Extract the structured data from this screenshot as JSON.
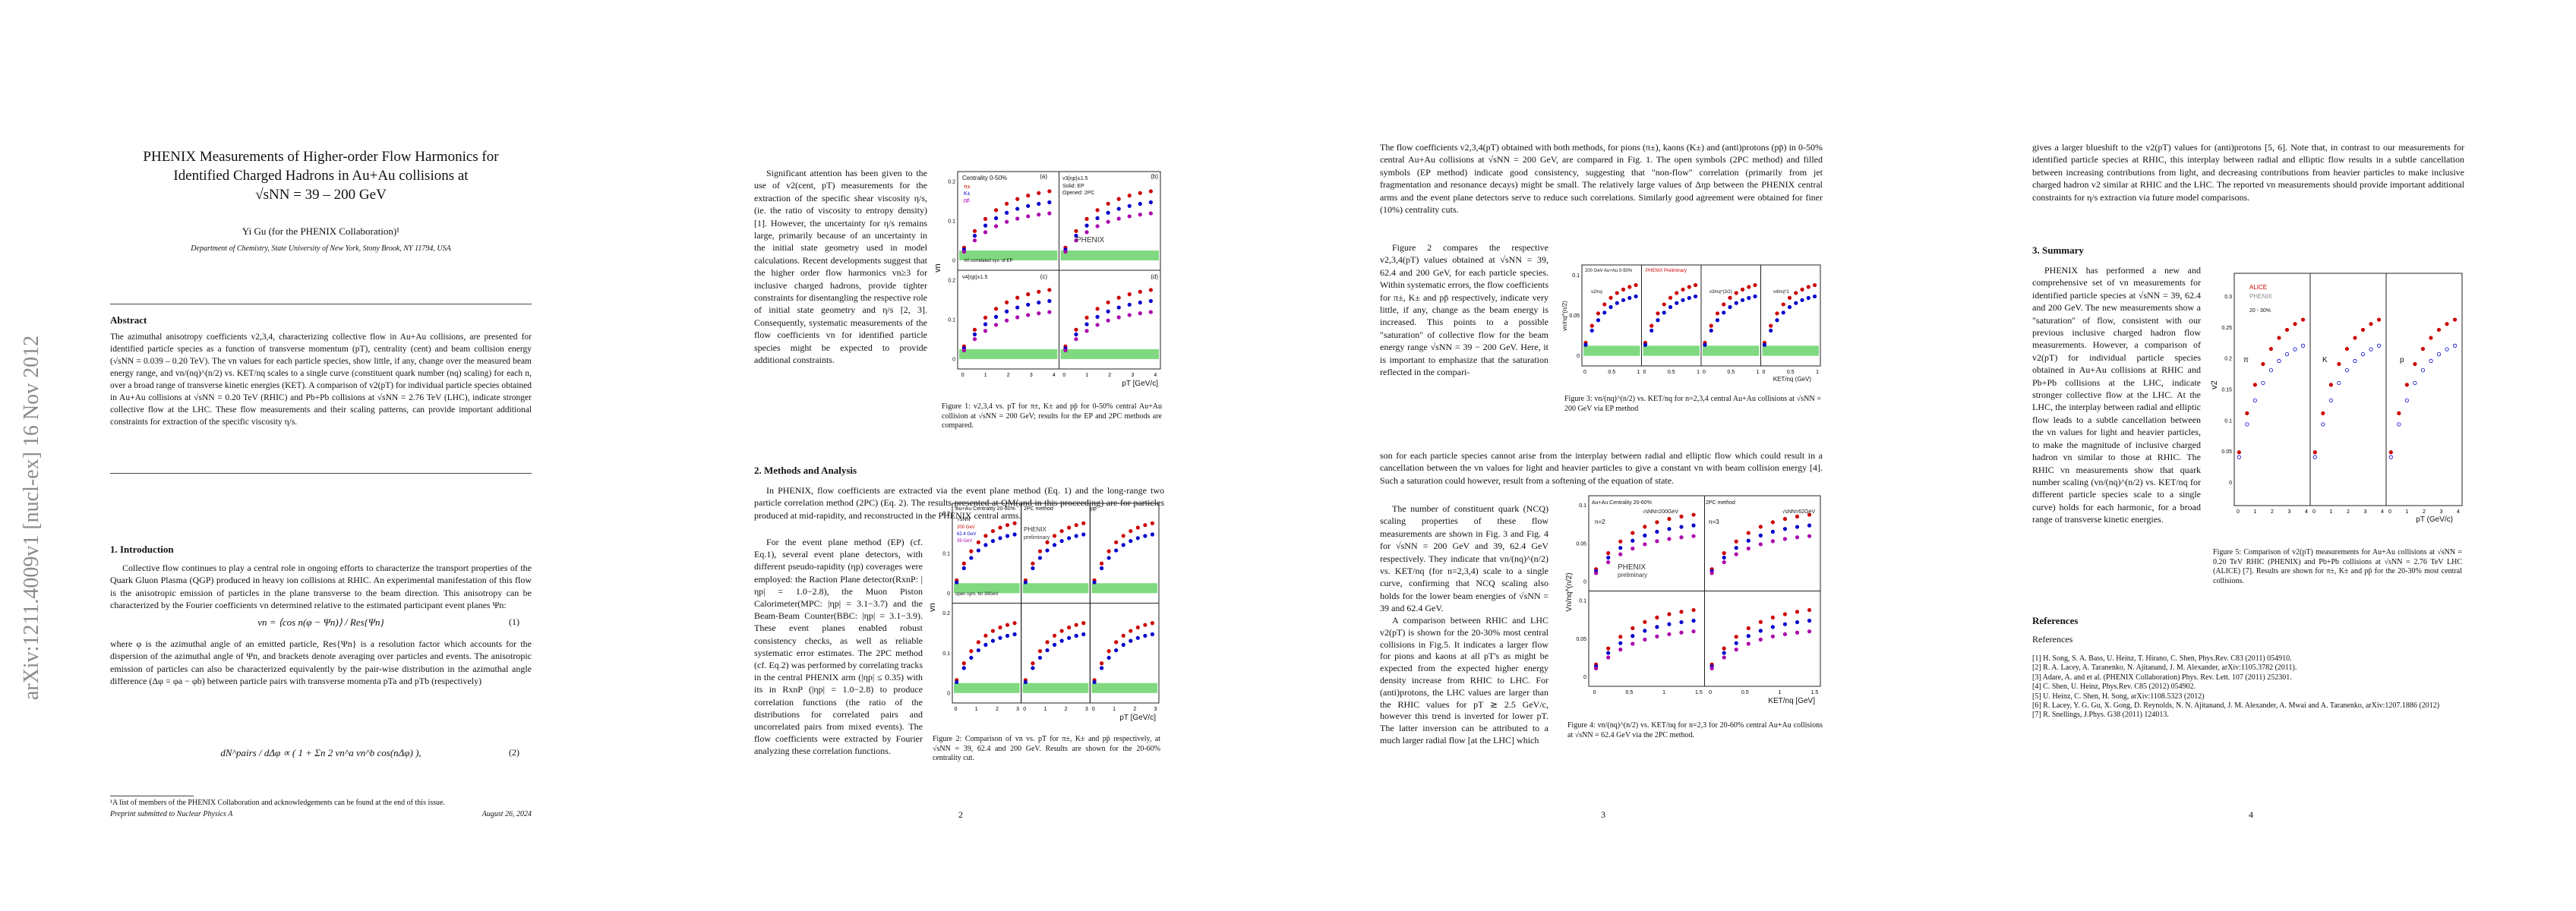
{
  "arxiv_stamp": "arXiv:1211.4009v1  [nucl-ex]  16 Nov 2012",
  "pages": [
    {
      "title_lines": [
        "PHENIX Measurements of Higher-order Flow Harmonics for",
        "Identified Charged Hadrons in Au+Au collisions at",
        "√sNN = 39 – 200 GeV"
      ],
      "author": "Yi Gu (for the PHENIX Collaboration)¹",
      "affiliation": "Department of Chemistry, State University of New York, Stony Brook, NY 11794, USA",
      "abstract_heading": "Abstract",
      "abstract": "The azimuthal anisotropy coefficients v2,3,4, characterizing collective flow in Au+Au collisions, are presented for identified particle species as a function of transverse momentum (pT), centrality (cent) and beam collision energy (√sNN = 0.039 – 0.20 TeV). The vn values for each particle species, show little, if any, change over the measured beam energy range, and vn/(nq)^(n/2) vs. KET/nq scales to a single curve (constituent quark number (nq) scaling) for each n, over a broad range of transverse kinetic energies (KET). A comparison of v2(pT) for individual particle species obtained in Au+Au collisions at √sNN = 0.20 TeV (RHIC) and Pb+Pb collisions at √sNN = 2.76 TeV (LHC), indicate stronger collective flow at the LHC. These flow measurements and their scaling patterns, can provide important additional constraints for extraction of the specific viscosity η/s.",
      "section_heading": "1. Introduction",
      "paragraphs": [
        "Collective flow continues to play a central role in ongoing efforts to characterize the transport properties of the Quark Gluon Plasma (QGP) produced in heavy ion collisions at RHIC. An experimental manifestation of this flow is the anisotropic emission of particles in the plane transverse to the beam direction. This anisotropy can be characterized by the Fourier coefficients vn determined relative to the estimated participant event planes Ψn:",
        "where φ is the azimuthal angle of an emitted particle, Res{Ψn} is a resolution factor which accounts for the dispersion of the azimuthal angle of Ψn, and brackets denote averaging over particles and events. The anisotropic emission of particles can also be characterized equivalently by the pair-wise distribution in the azimuthal angle difference (Δφ = φa − φb) between particle pairs with transverse momenta pTa and pTb (respectively)"
      ],
      "equations": [
        {
          "text": "vn = ⟨cos n(φ − Ψn)⟩ / Res{Ψn}",
          "number": "(1)"
        },
        {
          "text": "dN^pairs / dΔφ ∝ ( 1 + Σn 2 vn^a vn^b cos(nΔφ) ),",
          "number": "(2)"
        }
      ],
      "footnote": "¹A list of members of the PHENIX Collaboration and acknowledgements can be found at the end of this issue.",
      "journal": "Preprint submitted to Nuclear Physics A",
      "date": "August 26, 2024"
    },
    {
      "paragraphs": [
        "Significant attention has been given to the use of v2(cent, pT) measurements for the extraction of the specific shear viscosity η/s, (ie. the ratio of viscosity to entropy density) [1]. However, the uncertainty for η/s remains large, primarily because of an uncertainty in the initial state geometry used in model calculations. Recent developments suggest that the higher order flow harmonics vn≥3 for inclusive charged hadrons, provide tighter constraints for disentangling the respective role of initial state geometry and η/s [2, 3]. Consequently, systematic measurements of the flow coefficients vn for identified particle species might be expected to provide additional constraints.",
        "In PHENIX, flow coefficients are extracted via the event plane method (Eq. 1) and the long-range two particle correlation method (2PC) (Eq. 2). The results presented at QM(and in this proceeding) are for particles produced at mid-rapidity, and reconstructed in the PHENIX central arms.",
        "For the event plane method (EP) (cf. Eq.1), several event plane detectors, with different pseudo-rapidity (ηp) coverages were employed: the Raction Plane detector(RxnP: |ηp| = 1.0−2.8), the Muon Piston Calorimeter(MPC: |ηp| = 3.1−3.7) and the Beam-Beam Counter(BBC: |ηp| = 3.1−3.9). These event planes enabled robust consistency checks, as well as reliable systematic error estimates. The 2PC method (cf. Eq.2) was performed by correlating tracks in the central PHENIX arm (|ηp| ≤ 0.35) with its in RxnP (|ηp| = 1.0−2.8) to produce correlation functions (the ratio of the distributions for correlated pairs and uncorrelated pairs from mixed events). The flow coefficients were extracted by Fourier analyzing these correlation functions."
      ],
      "section_heading": "2. Methods and Analysis",
      "figures": [
        {
          "labels": [
            "Centrality 0-50%",
            "π±",
            "K±",
            "pp̄",
            "v3{ηp}±1.5",
            "Solid: EP",
            "Opened: 2PC",
            "PHENIX",
            "v4{ηp}±1.5",
            "(a)",
            "(b)",
            "(c)",
            "(d)",
            "pT [GeV/c]",
            "vn",
            "π0 correlated sys. of EP"
          ],
          "yticks": [
            "0",
            "0.1",
            "0.2"
          ],
          "xticks": [
            "0",
            "1",
            "2",
            "3",
            "4"
          ],
          "caption": "Figure 1: v2,3,4 vs. pT for π±, K± and pp̄ for 0-50% central Au+Au collision at √sNN = 200 GeV; results for the EP and 2PC methods are compared."
        },
        {
          "labels": [
            "Au+Au Centrality 20-60%",
            "2PC method",
            "pp̄",
            "√sNN",
            "200 GeV",
            "62.4 GeV",
            "39 GeV",
            "PHENIX",
            "preliminary",
            "open sym. for 39GeV",
            "pT [GeV/c]",
            "vn"
          ],
          "yticks": [
            "0",
            "0.1",
            "0.2"
          ],
          "xticks": [
            "0",
            "1",
            "2",
            "3"
          ],
          "caption": "Figure 2: Comparison of vn vs. pT for π±, K± and pp̄ respectively, at √sNN = 39, 62.4 and 200 GeV. Results are shown for the 20-60% centrality cut."
        }
      ],
      "page_number": "2"
    },
    {
      "paragraphs": [
        "The flow coefficients v2,3,4(pT) obtained with both methods, for pions (π±), kaons (K±) and (anti)protons (pp̄) in 0-50% central Au+Au collisions at √sNN = 200 GeV, are compared in Fig. 1. The open symbols (2PC method) and filled symbols (EP method) indicate good consistency, suggesting that \"non-flow\" correlation (primarily from jet fragmentation and resonance decays) might be small. The relatively large values of Δηp between the PHENIX central arms and the event plane detectors serve to reduce such correlations. Similarly good agreement were obtained for finer (10%) centrality cuts.",
        "Figure 2 compares the respective v2,3,4(pT) values obtained at √sNN = 39, 62.4 and 200 GeV, for each particle species. Within systematic errors, the flow coefficients for π±, K± and pp̄ respectively, indicate very little, if any, change as the beam energy is increased. This points to a possible \"saturation\" of collective flow for the beam energy range √sNN = 39 − 200 GeV. Here, it is important to emphasize that the saturation reflected in the compari-",
        "son for each particle species cannot arise from the interplay between radial and elliptic flow which could result in a cancellation between the vn values for light and heavier particles to give a constant vn with beam collision energy [4]. Such a saturation could however, result from a softening of the equation of state.",
        "The number of constituent quark (NCQ) scaling properties of these flow measurements are shown in Fig. 3 and Fig. 4 for √sNN = 200 GeV and 39, 62.4 GeV respectively. They indicate that vn/(nq)^(n/2) vs. KET/nq (for n=2,3,4) scale to a single curve, confirming that NCQ scaling also holds for the lower beam energies of √sNN = 39 and 62.4 GeV.",
        "A comparison between RHIC and LHC v2(pT) is shown for the 20-30% most central collisions in Fig.5. It indicates a larger flow for pions and kaons at all pT's as might be expected from the expected higher energy density increase from RHIC to LHC. For (anti)protons, the LHC values are larger than the RHIC values for pT ≳ 2.5 GeV/c, however this trend is inverted for lower pT. The latter inversion can be attributed to a much larger radial flow [at the LHC] which"
      ],
      "figures": [
        {
          "labels": [
            "200 GeV Au+Au 0-50%",
            "PHENIX Preliminary",
            "v2/nq",
            "v3/nq^(3/2)",
            "v4/nq^2",
            "KET/nq (GeV)",
            "vn/nq^(n/2)"
          ],
          "yticks": [
            "0",
            "0.05",
            "0.1"
          ],
          "xticks": [
            "0",
            "0.5",
            "1"
          ],
          "caption": "Figure 3: vn/(nq)^(n/2) vs. KET/nq for n=2,3,4 central Au+Au collisions at √sNN = 200 GeV via EP method"
        },
        {
          "labels": [
            "Au+Au Centrality 20-60%",
            "2PC method",
            "√sNN=200GeV",
            "√sNN=62GeV",
            "n=2",
            "n=3",
            "PHENIX",
            "preliminary",
            "KET/nq [GeV]",
            "Vn/nq^(n/2)"
          ],
          "yticks": [
            "0",
            "0.05",
            "0.1"
          ],
          "xticks": [
            "0",
            "0.5",
            "1",
            "1.5"
          ],
          "caption": "Figure 4: vn/(nq)^(n/2) vs. KET/nq for n=2,3 for 20-60% central Au+Au collisions at √sNN = 62.4 GeV via the 2PC method."
        }
      ],
      "page_number": "3"
    },
    {
      "paragraphs": [
        "gives a larger blueshift to the v2(pT) values for (anti)protons [5, 6]. Note that, in contrast to our measurements for identified particle species at RHIC, this interplay between radial and elliptic flow results in a subtle cancellation between increasing contributions from light, and decreasing contributions from heavier particles to make inclusive charged hadron v2 similar at RHIC and the LHC. The reported vn measurements should provide important additional constraints for η/s extraction via future model comparisons.",
        "PHENIX has performed a new and comprehensive set of vn measurements for identified particle species at √sNN = 39, 62.4 and 200 GeV. The new measurements show a \"saturation\" of flow, consistent with our previous inclusive charged hadron flow measurements. However, a comparison of v2(pT) for individual particle species obtained in Au+Au collisions at RHIC and Pb+Pb collisions at the LHC, indicate stronger collective flow at the LHC. At the LHC, the interplay between radial and elliptic flow leads to a subtle cancellation between the vn values for light and heavier particles, to make the magnitude of inclusive charged hadron vn similar to those at RHIC. The RHIC vn measurements show that quark number scaling (vn/(nq)^(n/2) vs. KET/nq for different particle species scale to a single curve) holds for each harmonic, for a broad range of transverse kinetic energies."
      ],
      "section_heading": "3. Summary",
      "figures": [
        {
          "labels": [
            "ALICE",
            "PHENIX",
            "20 - 30%",
            "π",
            "K",
            "p",
            "pT (GeV/c)",
            "v2"
          ],
          "yticks": [
            "0",
            "0.05",
            "0.1",
            "0.15",
            "0.2",
            "0.25",
            "0.3"
          ],
          "xticks": [
            "0",
            "1",
            "2",
            "3",
            "4"
          ],
          "caption": "Figure 5: Comparison of v2(pT) measurements for Au+Au collisions at √sNN = 0.20 TeV RHIC (PHENIX) and Pb+Pb collisions at √sNN = 2.76 TeV LHC (ALICE) [7]. Results are shown for π±, K± and pp̄ for the 20-30% most central collisions."
        }
      ],
      "references_heading": "References",
      "references_subheading": "References",
      "references": [
        "[1] H. Song, S. A. Bass, U. Heinz, T. Hirano, C. Shen, Phys.Rev. C83 (2011) 054910.",
        "[2] R. A. Lacey, A. Taranenko, N. Ajitanand, J. M. Alexander, arXiv:1105.3782 (2011).",
        "[3] Adare, A. and et al. (PHENIX Collaboration) Phys. Rev. Lett. 107 (2011) 252301.",
        "[4] C. Shen, U. Heinz, Phys.Rev. C85 (2012) 054902.",
        "[5] U. Heinz, C. Shen, H. Song, arXiv:1108.5323 (2012)",
        "[6] R. Lacey, Y. G. Gu, X. Gong, D. Reynolds, N. N. Ajitanand, J. M. Alexander, A. Mwai and A. Taranenko, arXiv:1207.1886 (2012)",
        "[7] R. Snellings, J.Phys. G38 (2011) 124013."
      ],
      "page_number": "4"
    }
  ]
}
